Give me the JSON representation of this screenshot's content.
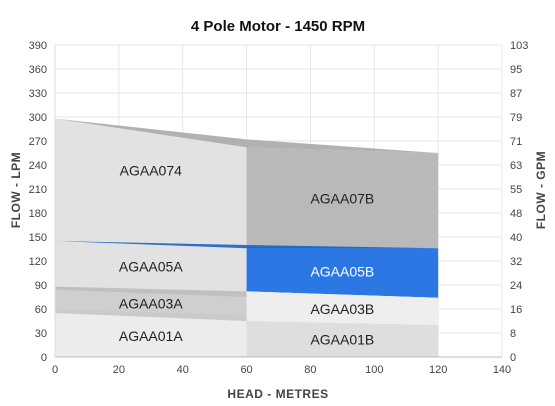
{
  "chart_data": {
    "type": "area",
    "title": "4 Pole Motor - 1450 RPM",
    "xlabel": "HEAD - METRES",
    "ylabel": "FLOW - LPM",
    "y2label": "FLOW - GPM",
    "xlim": [
      0,
      140
    ],
    "ylim": [
      0,
      390
    ],
    "x_ticks": [
      "0",
      "20",
      "40",
      "60",
      "80",
      "100",
      "120",
      "140"
    ],
    "y_ticks": [
      "0",
      "30",
      "60",
      "90",
      "120",
      "150",
      "180",
      "210",
      "240",
      "270",
      "300",
      "330",
      "360",
      "390"
    ],
    "y2_ticks": [
      "0",
      "8",
      "16",
      "24",
      "32",
      "40",
      "48",
      "55",
      "63",
      "71",
      "79",
      "87",
      "95",
      "103"
    ],
    "grid": true,
    "regions": [
      {
        "label": "AGAA074",
        "color": "#e2e2e2",
        "label_at": [
          30,
          233
        ],
        "points": [
          [
            0,
            298
          ],
          [
            0,
            145
          ],
          [
            60,
            138
          ],
          [
            60,
            262
          ]
        ]
      },
      {
        "label": "AGAA07B",
        "color": "#b9b9b9",
        "label_at": [
          90,
          198
        ],
        "points": [
          [
            60,
            262
          ],
          [
            60,
            138
          ],
          [
            120,
            136
          ],
          [
            120,
            255
          ]
        ]
      },
      {
        "label": "AGAA05A",
        "color": "#e2e2e2",
        "label_at": [
          30,
          113
        ],
        "points": [
          [
            0,
            145
          ],
          [
            0,
            88
          ],
          [
            60,
            75
          ],
          [
            60,
            138
          ]
        ]
      },
      {
        "label": "AGAA05B",
        "color": "#2b78e4",
        "label_at": [
          90,
          107
        ],
        "light_text": true,
        "points": [
          [
            60,
            138
          ],
          [
            60,
            82
          ],
          [
            120,
            74
          ],
          [
            120,
            136
          ]
        ]
      },
      {
        "label": "AGAA03A",
        "color": "#cfcfcf",
        "label_at": [
          30,
          67
        ],
        "points": [
          [
            0,
            88
          ],
          [
            0,
            55
          ],
          [
            60,
            45
          ],
          [
            60,
            75
          ]
        ]
      },
      {
        "label": "AGAA03B",
        "color": "#eeeeee",
        "label_at": [
          90,
          60
        ],
        "points": [
          [
            60,
            82
          ],
          [
            60,
            45
          ],
          [
            120,
            40
          ],
          [
            120,
            74
          ]
        ]
      },
      {
        "label": "AGAA01A",
        "color": "#ececec",
        "label_at": [
          30,
          26
        ],
        "points": [
          [
            0,
            55
          ],
          [
            0,
            0
          ],
          [
            60,
            0
          ],
          [
            60,
            45
          ]
        ]
      },
      {
        "label": "AGAA01B",
        "color": "#dedede",
        "label_at": [
          90,
          22
        ],
        "points": [
          [
            60,
            45
          ],
          [
            60,
            0
          ],
          [
            120,
            0
          ],
          [
            120,
            40
          ]
        ]
      }
    ],
    "curves": [
      {
        "color": "#a9a9a9",
        "points": [
          [
            0,
            298
          ],
          [
            60,
            272
          ],
          [
            120,
            255
          ]
        ],
        "top": [
          [
            0,
            298
          ],
          [
            60,
            272
          ],
          [
            120,
            255
          ]
        ],
        "bottom": [
          [
            0,
            298
          ],
          [
            60,
            262
          ]
        ],
        "name": "upper-band"
      },
      {
        "color": "#1a64cc",
        "points": [
          [
            0,
            145
          ],
          [
            60,
            140
          ],
          [
            120,
            136
          ]
        ],
        "bottom": [
          [
            0,
            145
          ],
          [
            60,
            136
          ]
        ]
      },
      {
        "color": "#bdbdbd",
        "points": [
          [
            0,
            88
          ],
          [
            60,
            82
          ]
        ],
        "bottom": [
          [
            0,
            84
          ],
          [
            60,
            75
          ]
        ]
      },
      {
        "color": "#c9c9c9",
        "points": [
          [
            0,
            60
          ],
          [
            60,
            52
          ]
        ],
        "bottom": [
          [
            0,
            55
          ],
          [
            60,
            45
          ]
        ]
      }
    ]
  }
}
